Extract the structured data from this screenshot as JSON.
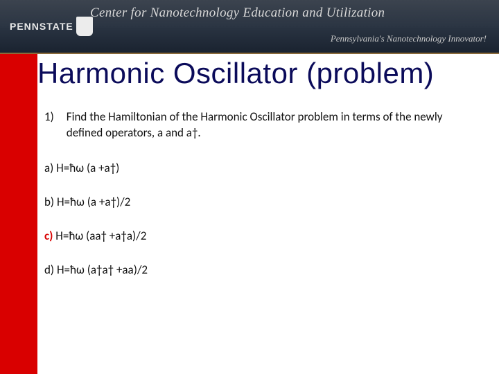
{
  "banner": {
    "logo_text": "PENNSTATE",
    "shield_text": "",
    "center_title": "Center for Nanotechnology Education and Utilization",
    "tagline": "Pennsylvania's Nanotechnology Innovator!",
    "bg_gradient_top": "#1a2330",
    "bg_gradient_mid": "#2a3442",
    "border_color": "#8a6a3a"
  },
  "slide": {
    "title": "Harmonic Oscillator (problem)",
    "title_color": "#0b0b5a",
    "sidebar_color": "#d90000"
  },
  "question": {
    "number": "1)",
    "text": "Find the Hamiltonian of the Harmonic Oscillator problem in terms of the newly defined operators, a and a†."
  },
  "options": [
    {
      "label": "a)",
      "formula": "H=ħω (a +a†)",
      "correct": false
    },
    {
      "label": "b)",
      "formula": "H=ħω (a +a†)/2",
      "correct": false
    },
    {
      "label": "c)",
      "formula": "H=ħω (aa† +a†a)/2",
      "correct": true
    },
    {
      "label": "d)",
      "formula": "H=ħω (a†a† +aa)/2",
      "correct": false
    }
  ]
}
